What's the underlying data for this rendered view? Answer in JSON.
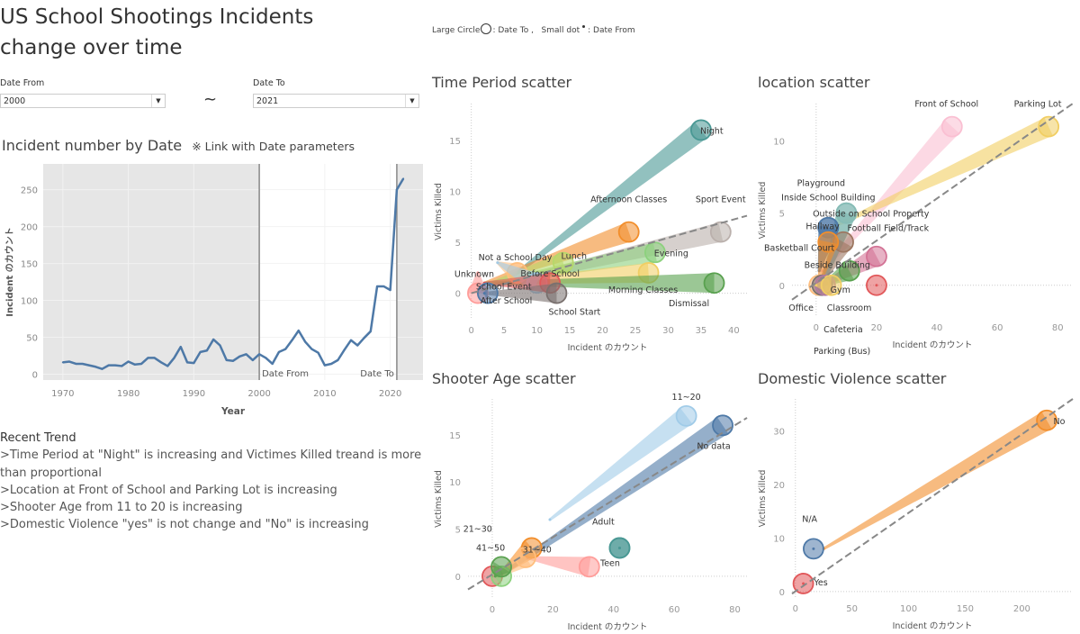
{
  "header": {
    "title_line1": "US School Shootings Incidents",
    "title_line2": "change over time",
    "legend_note": {
      "large_label": "Large Circle",
      "large_desc": ": Date To ,",
      "small_label": "Small dot",
      "small_desc": ": Date From"
    }
  },
  "params": {
    "date_from_label": "Date From",
    "date_from_value": "2000",
    "separator": "~",
    "date_to_label": "Date To",
    "date_to_value": "2021"
  },
  "line_section": {
    "title": "Incident number by Date",
    "note": "※ Link with Date parameters"
  },
  "trend": {
    "heading": "Recent Trend",
    "lines": [
      ">Time Period at \"Night\" is increasing and Victimes Killed treand is more than proportional",
      ">Location at Front of School and Parking Lot is increasing",
      ">Shooter Age from 11 to 20 is increasing",
      ">Domestic Violence \"yes\" is not change and \"No\" is increasing"
    ]
  },
  "chart_data": [
    {
      "type": "line",
      "title": "Incident number by Date",
      "xlabel": "Year",
      "ylabel": "Incident のカウント",
      "xlim": [
        1967,
        2025
      ],
      "ylim": [
        -8,
        285
      ],
      "xticks": [
        1970,
        1980,
        1990,
        2000,
        2010,
        2020
      ],
      "yticks": [
        0,
        50,
        100,
        150,
        200,
        250
      ],
      "color": "#4e79a7",
      "shaded_outside": [
        2000,
        2021
      ],
      "reference_lines": [
        {
          "x": 2000,
          "label": "Date From"
        },
        {
          "x": 2021,
          "label": "Date To"
        }
      ],
      "x": [
        1970,
        1971,
        1972,
        1973,
        1974,
        1975,
        1976,
        1977,
        1978,
        1979,
        1980,
        1981,
        1982,
        1983,
        1984,
        1985,
        1986,
        1987,
        1988,
        1989,
        1990,
        1991,
        1992,
        1993,
        1994,
        1995,
        1996,
        1997,
        1998,
        1999,
        2000,
        2001,
        2002,
        2003,
        2004,
        2005,
        2006,
        2007,
        2008,
        2009,
        2010,
        2011,
        2012,
        2013,
        2014,
        2015,
        2016,
        2017,
        2018,
        2019,
        2020,
        2021,
        2022
      ],
      "y": [
        16,
        17,
        14,
        14,
        12,
        10,
        7,
        12,
        12,
        11,
        17,
        13,
        14,
        22,
        22,
        16,
        11,
        22,
        37,
        16,
        15,
        30,
        32,
        47,
        39,
        19,
        18,
        24,
        27,
        19,
        27,
        22,
        14,
        30,
        34,
        46,
        59,
        44,
        34,
        29,
        12,
        14,
        19,
        33,
        46,
        39,
        49,
        58,
        119,
        119,
        114,
        250,
        265
      ]
    },
    {
      "type": "scatter",
      "title": "Time Period scatter",
      "xlabel": "Incident のカウント",
      "ylabel": "Victims Killed",
      "xlim": [
        -0.5,
        42
      ],
      "ylim": [
        -2.6,
        18.6
      ],
      "xticks": [
        0,
        5,
        10,
        15,
        20,
        25,
        30,
        35,
        40
      ],
      "yticks": [
        0,
        5,
        10,
        15
      ],
      "trendline": [
        [
          0,
          0
        ],
        [
          42,
          7.6
        ]
      ],
      "series": [
        {
          "name": "Night",
          "from": [
            6,
            1.5
          ],
          "to": [
            35,
            16
          ],
          "color": "#499894"
        },
        {
          "name": "Afternoon Classes",
          "from": [
            2,
            1
          ],
          "to": [
            24,
            6
          ],
          "color": "#f28e2b"
        },
        {
          "name": "Sport Event",
          "from": [
            2,
            0.5
          ],
          "to": [
            38,
            6
          ],
          "color": "#bab0ac"
        },
        {
          "name": "Evening",
          "from": [
            3,
            1
          ],
          "to": [
            28,
            4
          ],
          "color": "#8cd17d"
        },
        {
          "name": "Morning Classes",
          "from": [
            3,
            1
          ],
          "to": [
            27,
            2
          ],
          "color": "#f1ce63"
        },
        {
          "name": "Dismissal",
          "from": [
            2,
            1
          ],
          "to": [
            37,
            1
          ],
          "color": "#59a14f"
        },
        {
          "name": "Lunch",
          "from": [
            3,
            1
          ],
          "to": [
            14,
            3
          ],
          "color": "#b6d86a"
        },
        {
          "name": "Not a School Day",
          "from": [
            4,
            3
          ],
          "to": [
            7,
            2
          ],
          "color": "#ffbe7d"
        },
        {
          "name": "After School",
          "from": [
            4,
            3
          ],
          "to": [
            10,
            1
          ],
          "color": "#a0cbe8"
        },
        {
          "name": "Before School",
          "from": [
            2,
            1
          ],
          "to": [
            12,
            1
          ],
          "color": "#e15759"
        },
        {
          "name": "School Start",
          "from": [
            2,
            0
          ],
          "to": [
            13,
            0
          ],
          "color": "#79706e"
        },
        {
          "name": "Unknown",
          "from": [
            1,
            2
          ],
          "to": [
            1,
            0
          ],
          "color": "#ff9d9a"
        },
        {
          "name": "School Event",
          "from": [
            2,
            0
          ],
          "to": [
            2.5,
            0
          ],
          "color": "#4e79a7"
        }
      ]
    },
    {
      "type": "scatter",
      "title": "location scatter",
      "xlabel": "Incident のカウント",
      "ylabel": "Victims Killed",
      "xlim": [
        -8,
        85
      ],
      "ylim": [
        -2.2,
        12.6
      ],
      "xticks": [
        0,
        20,
        40,
        60,
        80
      ],
      "yticks": [
        0,
        5,
        10
      ],
      "trendline": [
        [
          -8,
          -1
        ],
        [
          85,
          12.6
        ]
      ],
      "series": [
        {
          "name": "Front of School",
          "from": [
            2,
            1
          ],
          "to": [
            45,
            11
          ],
          "color": "#fabfd2"
        },
        {
          "name": "Parking Lot",
          "from": [
            5,
            4
          ],
          "to": [
            77,
            11
          ],
          "color": "#f1ce63"
        },
        {
          "name": "Playground",
          "from": [
            2,
            0
          ],
          "to": [
            10,
            5
          ],
          "color": "#86bcb6"
        },
        {
          "name": "Inside School Building",
          "from": [
            2,
            0
          ],
          "to": [
            10,
            5
          ],
          "color": "#86bcb6"
        },
        {
          "name": "Basketball Court",
          "from": [
            1,
            1
          ],
          "to": [
            4,
            4
          ],
          "color": "#4e79a7"
        },
        {
          "name": "Hallway",
          "from": [
            1,
            1
          ],
          "to": [
            4,
            4
          ],
          "color": "#4e79a7"
        },
        {
          "name": "Football Field/Track",
          "from": [
            1,
            0
          ],
          "to": [
            9,
            3
          ],
          "color": "#9d7660"
        },
        {
          "name": "Beside Building",
          "from": [
            1,
            0
          ],
          "to": [
            4,
            3
          ],
          "color": "#f28e2b"
        },
        {
          "name": "Outside on School Property",
          "from": [
            2,
            0
          ],
          "to": [
            20,
            2
          ],
          "color": "#d37295"
        },
        {
          "name": "",
          "from": [
            20,
            0
          ],
          "to": [
            20,
            0
          ],
          "color": "#e15759"
        },
        {
          "name": "Gym",
          "from": [
            2,
            0
          ],
          "to": [
            11,
            1
          ],
          "color": "#59a14f"
        },
        {
          "name": "Office",
          "from": [
            0,
            0
          ],
          "to": [
            1,
            0
          ],
          "color": "#ffbe7d"
        },
        {
          "name": "Classroom",
          "from": [
            0,
            0
          ],
          "to": [
            2,
            0
          ],
          "color": "#79706e"
        },
        {
          "name": "Cafeteria",
          "from": [
            0,
            0
          ],
          "to": [
            3,
            0
          ],
          "color": "#b07aa1"
        },
        {
          "name": "Parking (Bus)",
          "from": [
            0,
            0
          ],
          "to": [
            5,
            0
          ],
          "color": "#f1ce63"
        }
      ]
    },
    {
      "type": "scatter",
      "title": "Shooter Age scatter",
      "xlabel": "Incident のカウント",
      "ylabel": "Victims Killed",
      "xlim": [
        -8,
        84
      ],
      "ylim": [
        -2.4,
        18.8
      ],
      "xticks": [
        0,
        20,
        40,
        60,
        80
      ],
      "yticks": [
        0,
        5,
        10,
        15
      ],
      "trendline": [
        [
          -8,
          -1.4
        ],
        [
          84,
          16.8
        ]
      ],
      "series": [
        {
          "name": "11~20",
          "from": [
            19,
            6
          ],
          "to": [
            64,
            17
          ],
          "color": "#a0cbe8"
        },
        {
          "name": "No data",
          "from": [
            2,
            0
          ],
          "to": [
            76,
            16
          ],
          "color": "#4e79a7"
        },
        {
          "name": "31~40",
          "from": [
            11,
            2
          ],
          "to": [
            32,
            1
          ],
          "color": "#ff9d9a"
        },
        {
          "name": "Adult",
          "from": [
            42,
            3
          ],
          "to": [
            42,
            3
          ],
          "color": "#499894"
        },
        {
          "name": "Teen",
          "from": [
            42,
            3
          ],
          "to": [
            42,
            3
          ],
          "color": "#499894"
        },
        {
          "name": "21~30",
          "from": [
            2,
            0
          ],
          "to": [
            13,
            3
          ],
          "color": "#f28e2b"
        },
        {
          "name": "",
          "from": [
            2,
            0
          ],
          "to": [
            11,
            2
          ],
          "color": "#ffbe7d"
        },
        {
          "name": "",
          "from": [
            0,
            0
          ],
          "to": [
            0,
            0
          ],
          "color": "#e15759"
        },
        {
          "name": "",
          "from": [
            1,
            0
          ],
          "to": [
            3,
            0
          ],
          "color": "#8cd17d"
        },
        {
          "name": "41~50",
          "from": [
            1,
            0
          ],
          "to": [
            3,
            1
          ],
          "color": "#59a14f"
        }
      ]
    },
    {
      "type": "scatter",
      "title": "Domestic Violence scatter",
      "xlabel": "Incident のカウント",
      "ylabel": "Victims Killed",
      "xlim": [
        -3,
        245
      ],
      "ylim": [
        -1.2,
        36
      ],
      "xticks": [
        0,
        50,
        100,
        150,
        200
      ],
      "yticks": [
        0,
        10,
        20,
        30
      ],
      "trendline": [
        [
          -3,
          -0.4
        ],
        [
          245,
          36
        ]
      ],
      "series": [
        {
          "name": "No",
          "from": [
            25,
            8
          ],
          "to": [
            222,
            32
          ],
          "color": "#f28e2b"
        },
        {
          "name": "N/A",
          "from": [
            16,
            8
          ],
          "to": [
            16,
            8
          ],
          "color": "#4e79a7"
        },
        {
          "name": "Yes",
          "from": [
            7,
            1.5
          ],
          "to": [
            7,
            1.5
          ],
          "color": "#e15759"
        }
      ]
    }
  ]
}
